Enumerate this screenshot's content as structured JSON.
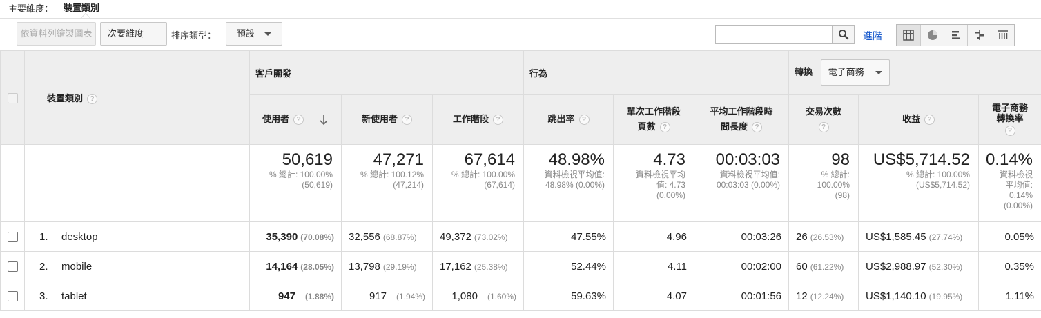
{
  "primary_dimension": {
    "label": "主要維度：",
    "value": "裝置類別"
  },
  "toolbar": {
    "plot_rows": "依資料列繪製圖表",
    "secondary_dimension": "次要維度",
    "sort_type_label": "排序類型：",
    "sort_type_value": "預設",
    "search_placeholder": "",
    "advanced": "進階"
  },
  "table": {
    "dimension_header": "裝置類別",
    "groups": {
      "acquisition": "客戶開發",
      "behavior": "行為",
      "conversion": "轉換",
      "conversion_select": "電子商務"
    },
    "columns": {
      "users": "使用者",
      "new_users": "新使用者",
      "sessions": "工作階段",
      "bounce_rate": "跳出率",
      "pages_per_session_1": "單次工作階段",
      "pages_per_session_2": "頁數",
      "avg_duration_1": "平均工作階段時",
      "avg_duration_2": "間長度",
      "transactions": "交易次數",
      "revenue": "收益",
      "ecom_rate_1": "電子商務",
      "ecom_rate_2": "轉換率"
    },
    "totals": {
      "users": {
        "value": "50,619",
        "sub1": "% 總計: 100.00%",
        "sub2": "(50,619)"
      },
      "new_users": {
        "value": "47,271",
        "sub1": "% 總計: 100.12%",
        "sub2": "(47,214)"
      },
      "sessions": {
        "value": "67,614",
        "sub1": "% 總計: 100.00%",
        "sub2": "(67,614)"
      },
      "bounce_rate": {
        "value": "48.98%",
        "sub1": "資料檢視平均值:",
        "sub2": "48.98% (0.00%)"
      },
      "pages": {
        "value": "4.73",
        "sub1": "資料檢視平均",
        "sub2": "值: 4.73",
        "sub3": "(0.00%)"
      },
      "duration": {
        "value": "00:03:03",
        "sub1": "資料檢視平均值:",
        "sub2": "00:03:03 (0.00%)"
      },
      "transactions": {
        "value": "98",
        "sub1": "% 總計:",
        "sub2": "100.00%",
        "sub3": "(98)"
      },
      "revenue": {
        "value": "US$5,714.52",
        "sub1": "% 總計: 100.00%",
        "sub2": "(US$5,714.52)"
      },
      "ecom_rate": {
        "value": "0.14%",
        "sub1": "資料檢視",
        "sub2": "平均值:",
        "sub3": "0.14%",
        "sub4": "(0.00%)"
      }
    },
    "rows": [
      {
        "index": "1.",
        "device": "desktop",
        "users": "35,390",
        "users_pct": "(70.08%)",
        "new_users": "32,556",
        "new_users_pct": "(68.87%)",
        "sessions": "49,372",
        "sessions_pct": "(73.02%)",
        "bounce_rate": "47.55%",
        "pages": "4.96",
        "duration": "00:03:26",
        "transactions": "26",
        "transactions_pct": "(26.53%)",
        "revenue": "US$1,585.45",
        "revenue_pct": "(27.74%)",
        "ecom_rate": "0.05%"
      },
      {
        "index": "2.",
        "device": "mobile",
        "users": "14,164",
        "users_pct": "(28.05%)",
        "new_users": "13,798",
        "new_users_pct": "(29.19%)",
        "sessions": "17,162",
        "sessions_pct": "(25.38%)",
        "bounce_rate": "52.44%",
        "pages": "4.11",
        "duration": "00:02:00",
        "transactions": "60",
        "transactions_pct": "(61.22%)",
        "revenue": "US$2,988.97",
        "revenue_pct": "(52.30%)",
        "ecom_rate": "0.35%"
      },
      {
        "index": "3.",
        "device": "tablet",
        "users": "947",
        "users_pct": "(1.88%)",
        "new_users": "917",
        "new_users_pct": "(1.94%)",
        "sessions": "1,080",
        "sessions_pct": "(1.60%)",
        "bounce_rate": "59.63%",
        "pages": "4.07",
        "duration": "00:01:56",
        "transactions": "12",
        "transactions_pct": "(12.24%)",
        "revenue": "US$1,140.10",
        "revenue_pct": "(19.95%)",
        "ecom_rate": "1.11%"
      }
    ]
  },
  "help_glyph": "?"
}
